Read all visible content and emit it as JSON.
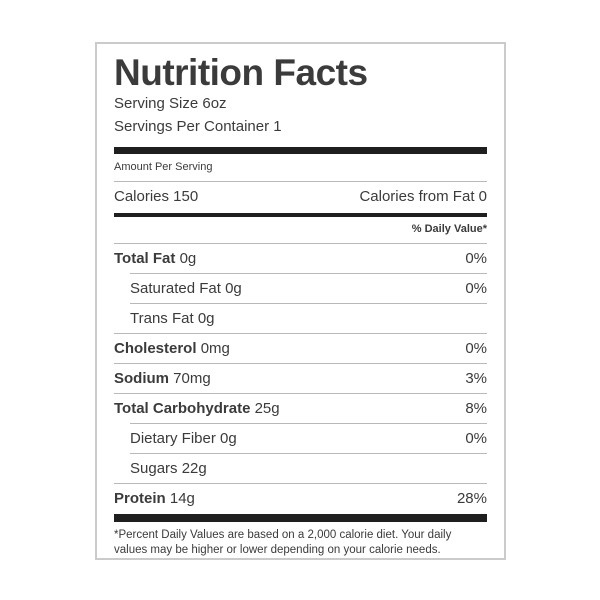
{
  "colors": {
    "text": "#3b3b3b",
    "bar": "#1f1f1f",
    "divider": "#b9b9b9",
    "border": "#cbcbcb"
  },
  "label": {
    "title": "Nutrition Facts",
    "serving_size": "Serving Size 6oz",
    "servings_per_container": "Servings Per Container 1",
    "amount_per_serving": "Amount Per Serving",
    "calories": "Calories 150",
    "calories_from_fat": "Calories from Fat 0",
    "daily_value_header": "% Daily Value*",
    "rows": [
      {
        "name": "Total Fat",
        "amount": "0g",
        "daily_value": "0%",
        "bold": true,
        "indent": false
      },
      {
        "name": "Saturated Fat",
        "amount": "0g",
        "daily_value": "0%",
        "bold": false,
        "indent": true
      },
      {
        "name": "Trans Fat",
        "amount": "0g",
        "daily_value": "",
        "bold": false,
        "indent": true
      },
      {
        "name": "Cholesterol",
        "amount": "0mg",
        "daily_value": "0%",
        "bold": true,
        "indent": false
      },
      {
        "name": "Sodium",
        "amount": "70mg",
        "daily_value": "3%",
        "bold": true,
        "indent": false
      },
      {
        "name": "Total Carbohydrate",
        "amount": "25g",
        "daily_value": "8%",
        "bold": true,
        "indent": false
      },
      {
        "name": "Dietary Fiber",
        "amount": "0g",
        "daily_value": "0%",
        "bold": false,
        "indent": true
      },
      {
        "name": "Sugars",
        "amount": "22g",
        "daily_value": "",
        "bold": false,
        "indent": true
      },
      {
        "name": "Protein",
        "amount": "14g",
        "daily_value": "28%",
        "bold": true,
        "indent": false
      }
    ],
    "footnote": "*Percent Daily Values are based on a 2,000 calorie diet. Your daily values may be higher or lower depending on your calorie needs."
  }
}
